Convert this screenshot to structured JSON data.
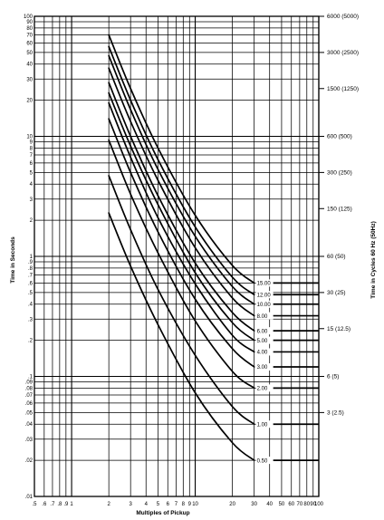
{
  "chart_data": {
    "type": "line",
    "xlabel": "Multiples of Pickup",
    "ylabel": "Time in Seconds",
    "y2label": "Time in Cycles 60 Hz (50Hz)",
    "xscale": "log",
    "yscale": "log",
    "xlim": [
      0.5,
      100
    ],
    "ylim": [
      0.01,
      100
    ],
    "grid": true,
    "x_ticks": [
      {
        "value": 0.5,
        "label": ".5"
      },
      {
        "value": 0.6,
        "label": ".6"
      },
      {
        "value": 0.7,
        "label": ".7"
      },
      {
        "value": 0.8,
        "label": ".8"
      },
      {
        "value": 0.9,
        "label": ".9"
      },
      {
        "value": 1,
        "label": "1"
      },
      {
        "value": 2,
        "label": "2"
      },
      {
        "value": 3,
        "label": "3"
      },
      {
        "value": 4,
        "label": "4"
      },
      {
        "value": 5,
        "label": "5"
      },
      {
        "value": 6,
        "label": "6"
      },
      {
        "value": 7,
        "label": "7"
      },
      {
        "value": 8,
        "label": "8"
      },
      {
        "value": 9,
        "label": "9"
      },
      {
        "value": 10,
        "label": "10"
      },
      {
        "value": 20,
        "label": "20"
      },
      {
        "value": 30,
        "label": "30"
      },
      {
        "value": 40,
        "label": "40"
      },
      {
        "value": 50,
        "label": "50"
      },
      {
        "value": 60,
        "label": "60"
      },
      {
        "value": 70,
        "label": "70"
      },
      {
        "value": 80,
        "label": "80"
      },
      {
        "value": 90,
        "label": "90"
      },
      {
        "value": 100,
        "label": "100"
      }
    ],
    "y_ticks": [
      {
        "value": 0.01,
        "label": ".01"
      },
      {
        "value": 0.02,
        "label": ".02"
      },
      {
        "value": 0.03,
        "label": ".03"
      },
      {
        "value": 0.04,
        "label": ".04"
      },
      {
        "value": 0.05,
        "label": ".05"
      },
      {
        "value": 0.06,
        "label": ".06"
      },
      {
        "value": 0.07,
        "label": ".07"
      },
      {
        "value": 0.08,
        "label": ".08"
      },
      {
        "value": 0.09,
        "label": ".09"
      },
      {
        "value": 0.1,
        "label": ".1"
      },
      {
        "value": 0.2,
        "label": ".2"
      },
      {
        "value": 0.3,
        "label": ".3"
      },
      {
        "value": 0.4,
        "label": ".4"
      },
      {
        "value": 0.5,
        "label": ".5"
      },
      {
        "value": 0.6,
        "label": ".6"
      },
      {
        "value": 0.7,
        "label": ".7"
      },
      {
        "value": 0.8,
        "label": ".8"
      },
      {
        "value": 0.9,
        "label": ".9"
      },
      {
        "value": 1,
        "label": "1"
      },
      {
        "value": 2,
        "label": "2"
      },
      {
        "value": 3,
        "label": "3"
      },
      {
        "value": 4,
        "label": "4"
      },
      {
        "value": 5,
        "label": "5"
      },
      {
        "value": 6,
        "label": "6"
      },
      {
        "value": 7,
        "label": "7"
      },
      {
        "value": 8,
        "label": "8"
      },
      {
        "value": 9,
        "label": "9"
      },
      {
        "value": 10,
        "label": "10"
      },
      {
        "value": 20,
        "label": "20"
      },
      {
        "value": 30,
        "label": "30"
      },
      {
        "value": 40,
        "label": "40"
      },
      {
        "value": 50,
        "label": "50"
      },
      {
        "value": 60,
        "label": "60"
      },
      {
        "value": 70,
        "label": "70"
      },
      {
        "value": 80,
        "label": "80"
      },
      {
        "value": 90,
        "label": "90"
      },
      {
        "value": 100,
        "label": "100"
      }
    ],
    "right_ticks": [
      {
        "value": 100,
        "label": "6000 (5000)"
      },
      {
        "value": 50,
        "label": "3000 (2500)"
      },
      {
        "value": 25,
        "label": "1500 (1250)"
      },
      {
        "value": 10,
        "label": "600 (500)"
      },
      {
        "value": 5,
        "label": "300 (250)"
      },
      {
        "value": 2.5,
        "label": "150 (125)"
      },
      {
        "value": 1,
        "label": "60 (50)"
      },
      {
        "value": 0.5,
        "label": "30 (25)"
      },
      {
        "value": 0.25,
        "label": "15 (12.5)"
      },
      {
        "value": 0.1,
        "label": "6 (5)"
      },
      {
        "value": 0.05,
        "label": "3 (2.5)"
      }
    ],
    "flat_extension_x": [
      30,
      100
    ],
    "series": [
      {
        "label": "15.00",
        "x": [
          2,
          3,
          5,
          10,
          20,
          30
        ],
        "y": [
          70,
          25,
          8,
          2.2,
          0.84,
          0.6
        ]
      },
      {
        "label": "12.00",
        "x": [
          2,
          3,
          5,
          10,
          20,
          30
        ],
        "y": [
          56,
          20,
          6.4,
          1.76,
          0.67,
          0.48
        ]
      },
      {
        "label": "10.00",
        "x": [
          2,
          3,
          5,
          10,
          20,
          30
        ],
        "y": [
          47,
          16.7,
          5.3,
          1.47,
          0.56,
          0.4
        ]
      },
      {
        "label": "8.00",
        "x": [
          2,
          3,
          5,
          10,
          20,
          30
        ],
        "y": [
          37,
          13.3,
          4.3,
          1.18,
          0.45,
          0.32
        ]
      },
      {
        "label": "6.00",
        "x": [
          2,
          3,
          5,
          10,
          20,
          30
        ],
        "y": [
          28,
          10,
          3.2,
          0.88,
          0.34,
          0.24
        ]
      },
      {
        "label": "5.00",
        "x": [
          2,
          3,
          5,
          10,
          20,
          30
        ],
        "y": [
          23,
          8.3,
          2.7,
          0.73,
          0.28,
          0.2
        ]
      },
      {
        "label": "4.00",
        "x": [
          2,
          3,
          5,
          10,
          20,
          30
        ],
        "y": [
          19,
          6.7,
          2.1,
          0.59,
          0.22,
          0.16
        ]
      },
      {
        "label": "3.00",
        "x": [
          2,
          3,
          5,
          10,
          20,
          30
        ],
        "y": [
          14,
          5,
          1.6,
          0.44,
          0.17,
          0.12
        ]
      },
      {
        "label": "2.00",
        "x": [
          2,
          3,
          5,
          10,
          20,
          30
        ],
        "y": [
          9.3,
          3.3,
          1.07,
          0.29,
          0.11,
          0.08
        ]
      },
      {
        "label": "1.00",
        "x": [
          2,
          3,
          5,
          10,
          20,
          30
        ],
        "y": [
          4.7,
          1.67,
          0.53,
          0.15,
          0.056,
          0.04
        ]
      },
      {
        "label": "0.50",
        "x": [
          2,
          3,
          5,
          10,
          20,
          30
        ],
        "y": [
          2.3,
          0.83,
          0.27,
          0.073,
          0.028,
          0.02
        ]
      }
    ]
  }
}
